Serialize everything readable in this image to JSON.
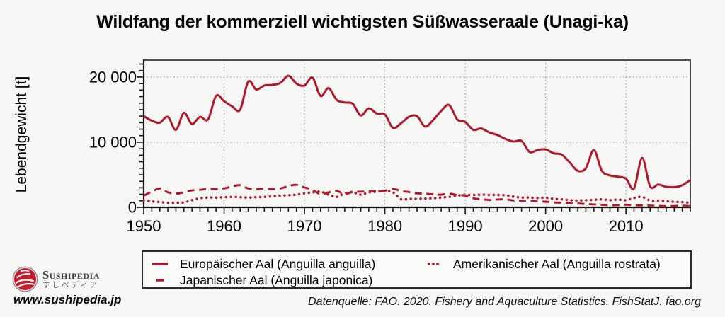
{
  "title": "Wildfang der kommerziell wichtigsten Süßwasseraale (Unagi-ka)",
  "source": "Datenquelle: FAO. 2020. Fishery and Aquaculture Statistics. FishStatJ. fao.org",
  "branding": {
    "name_caps": "Sushipedia",
    "name_jp": "すしペディア",
    "url": "www.sushipedia.jp"
  },
  "colors": {
    "line": "#b2182b",
    "grid": "#9b9b9b",
    "frame": "#4d4d4d",
    "axis": "#141414",
    "background": "#f7f7f5",
    "legend_bg": "#fbfbfa",
    "logo_red": "#c41e2f",
    "logo_gray": "#8f9296"
  },
  "chart_data": {
    "type": "line",
    "title": "Wildfang der kommerziell wichtigsten Süßwasseraale (Unagi-ka)",
    "xlabel": "",
    "ylabel": "Lebendgewicht [t]",
    "x_start": 1950,
    "x_end": 2018,
    "x_ticks": [
      1950,
      1960,
      1970,
      1980,
      1990,
      2000,
      2010
    ],
    "x_minor_step": 1,
    "y_ticks": [
      {
        "value": 0,
        "label": "0"
      },
      {
        "value": 10000,
        "label": "10 000"
      },
      {
        "value": 20000,
        "label": "20 000"
      }
    ],
    "y_minor_step": 1000,
    "ylim": [
      0,
      22600
    ],
    "grid": "dotted",
    "legend_position": "bottom",
    "series": [
      {
        "key": "european-eel",
        "name": "Europäischer Aal (Anguilla anguilla)",
        "style": "solid",
        "values": [
          14000,
          13300,
          13000,
          13900,
          11900,
          14500,
          12800,
          13900,
          13500,
          17100,
          16300,
          15500,
          15000,
          19300,
          18100,
          18700,
          18800,
          19100,
          20200,
          19000,
          18700,
          19900,
          17100,
          18300,
          16500,
          16100,
          15900,
          14100,
          15200,
          14400,
          14250,
          12200,
          12900,
          13900,
          14000,
          12400,
          13400,
          14800,
          15700,
          13500,
          13100,
          11900,
          12100,
          11500,
          11100,
          10500,
          10100,
          10200,
          8500,
          8800,
          8900,
          8300,
          8100,
          6900,
          5600,
          6000,
          8800,
          5600,
          4900,
          4700,
          4400,
          2900,
          7600,
          3200,
          3500,
          3150,
          3100,
          3400,
          4200
        ]
      },
      {
        "key": "japanese-eel",
        "name": "Japanischer Aal (Anguilla japonica)",
        "style": "dashed",
        "values": [
          1800,
          2400,
          2900,
          2300,
          2100,
          2300,
          2600,
          2700,
          2800,
          2800,
          2900,
          3200,
          3400,
          2900,
          2800,
          2900,
          2800,
          2900,
          3250,
          3450,
          3050,
          2700,
          2000,
          2300,
          2550,
          2000,
          2400,
          2400,
          2500,
          2450,
          2550,
          2850,
          2500,
          2350,
          2150,
          2100,
          2000,
          1950,
          2100,
          1900,
          1800,
          1400,
          1250,
          1120,
          1200,
          1230,
          1050,
          1000,
          980,
          900,
          870,
          760,
          720,
          690,
          600,
          510,
          450,
          400,
          330,
          350,
          400,
          330,
          300,
          260,
          220,
          180,
          200,
          250,
          180
        ]
      },
      {
        "key": "american-eel",
        "name": "Amerikanischer Aal (Anguilla rostrata)",
        "style": "dotted",
        "values": [
          1050,
          900,
          800,
          700,
          700,
          750,
          1100,
          1400,
          1500,
          1500,
          1550,
          1600,
          1550,
          1500,
          1550,
          1600,
          1700,
          1800,
          1850,
          1950,
          2150,
          2300,
          2400,
          1950,
          1600,
          2150,
          2300,
          1950,
          2300,
          2400,
          2500,
          2300,
          1250,
          1300,
          1300,
          1350,
          1400,
          1500,
          1600,
          1800,
          1900,
          1900,
          1950,
          1900,
          1900,
          1850,
          1650,
          1500,
          1500,
          1450,
          1480,
          1300,
          1230,
          1100,
          1050,
          1100,
          1150,
          1230,
          1100,
          1200,
          1100,
          1450,
          1600,
          1050,
          1000,
          950,
          850,
          800,
          700
        ]
      }
    ]
  }
}
